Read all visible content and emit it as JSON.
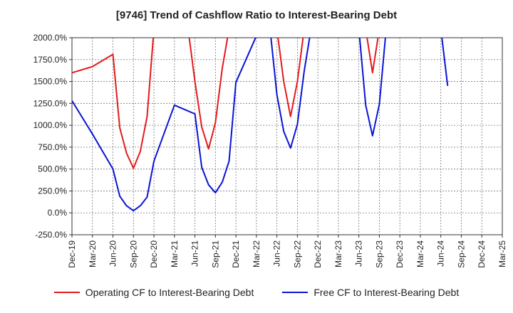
{
  "chart_data": {
    "type": "line",
    "title": "[9746]  Trend of Cashflow Ratio to Interest-Bearing Debt",
    "xlabel": "",
    "ylabel": "",
    "ylim": [
      -250,
      2000
    ],
    "yticks": [
      -250,
      0,
      250,
      500,
      750,
      1000,
      1250,
      1500,
      1750,
      2000
    ],
    "ytick_labels": [
      "-250.0%",
      "0.0%",
      "250.0%",
      "500.0%",
      "750.0%",
      "1000.0%",
      "1250.0%",
      "1500.0%",
      "1750.0%",
      "2000.0%"
    ],
    "x_tick_labels": [
      "Dec-19",
      "Mar-20",
      "Jun-20",
      "Sep-20",
      "Dec-20",
      "Mar-21",
      "Jun-21",
      "Sep-21",
      "Dec-21",
      "Mar-22",
      "Jun-22",
      "Sep-22",
      "Dec-22",
      "Mar-23",
      "Jun-23",
      "Sep-23",
      "Dec-23",
      "Mar-24",
      "Jun-24",
      "Sep-24",
      "Dec-24",
      "Mar-25"
    ],
    "grid": true,
    "legend_position": "bottom",
    "series": [
      {
        "name": "Operating CF to Interest-Bearing Debt",
        "color": "#e31a1c",
        "points": [
          [
            "Dec-19",
            1600
          ],
          [
            "Mar-20",
            1670
          ],
          [
            "Jun-20",
            1810
          ],
          [
            "Jul-20",
            970
          ],
          [
            "Aug-20",
            680
          ],
          [
            "Sep-20",
            510
          ],
          [
            "Oct-20",
            700
          ],
          [
            "Nov-20",
            1100
          ],
          [
            "Dec-20",
            2100
          ],
          null,
          [
            "May-21",
            2100
          ],
          [
            "Jun-21",
            1500
          ],
          [
            "Jul-21",
            980
          ],
          [
            "Aug-21",
            730
          ],
          [
            "Sep-21",
            1030
          ],
          [
            "Oct-21",
            1650
          ],
          [
            "Nov-21",
            2100
          ],
          null,
          [
            "Jun-22",
            2100
          ],
          [
            "Jul-22",
            1500
          ],
          [
            "Aug-22",
            1100
          ],
          [
            "Sep-22",
            1500
          ],
          [
            "Oct-22",
            2100
          ],
          null,
          [
            "Jul-23",
            2100
          ],
          [
            "Aug-23",
            1600
          ],
          [
            "Sep-23",
            2100
          ]
        ]
      },
      {
        "name": "Free CF to Interest-Bearing Debt",
        "color": "#0a14d4",
        "points": [
          [
            "Dec-19",
            1280
          ],
          [
            "Mar-20",
            900
          ],
          [
            "Jun-20",
            500
          ],
          [
            "Jul-20",
            190
          ],
          [
            "Aug-20",
            80
          ],
          [
            "Sep-20",
            25
          ],
          [
            "Oct-20",
            80
          ],
          [
            "Nov-20",
            180
          ],
          [
            "Dec-20",
            590
          ],
          [
            "Mar-21",
            1230
          ],
          [
            "Jun-21",
            1130
          ],
          [
            "Jul-21",
            520
          ],
          [
            "Aug-21",
            320
          ],
          [
            "Sep-21",
            230
          ],
          [
            "Oct-21",
            350
          ],
          [
            "Nov-21",
            590
          ],
          [
            "Dec-21",
            1490
          ],
          [
            "Mar-22",
            2020
          ],
          null,
          [
            "May-22",
            2100
          ],
          [
            "Jun-22",
            1350
          ],
          [
            "Jul-22",
            930
          ],
          [
            "Aug-22",
            740
          ],
          [
            "Sep-22",
            1010
          ],
          [
            "Oct-22",
            1620
          ],
          [
            "Nov-22",
            2100
          ],
          null,
          [
            "Jun-23",
            2100
          ],
          [
            "Jul-23",
            1230
          ],
          [
            "Aug-23",
            880
          ],
          [
            "Sep-23",
            1240
          ],
          [
            "Oct-23",
            2100
          ],
          null,
          [
            "Jun-24",
            2100
          ],
          [
            "Jul-24",
            1450
          ]
        ]
      }
    ]
  }
}
